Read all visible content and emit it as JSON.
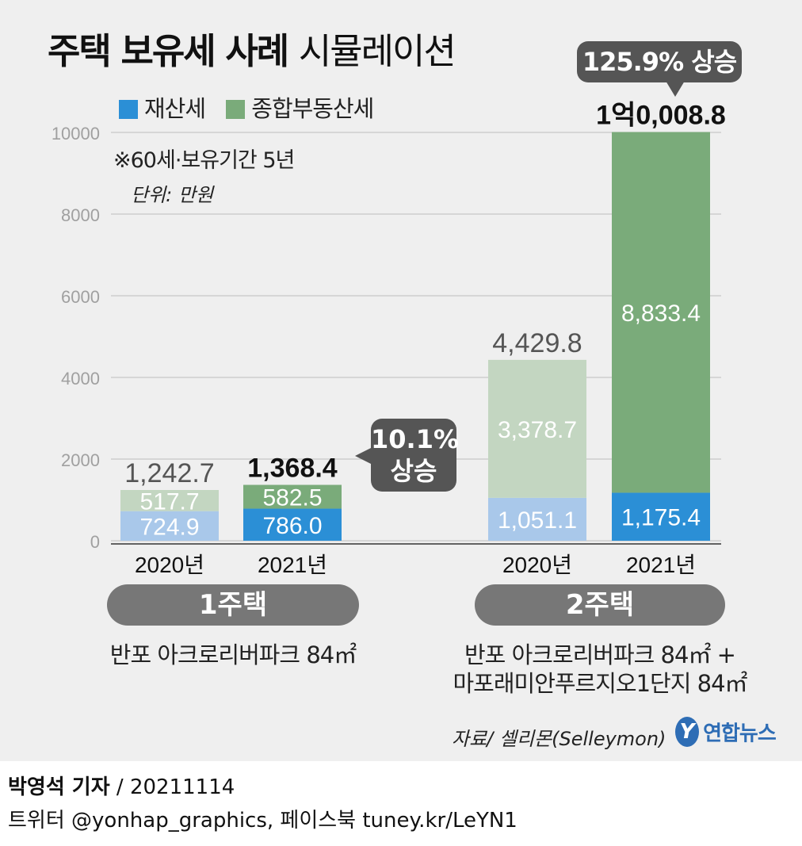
{
  "title": {
    "main": "주택 보유세 사례",
    "sub": "시뮬레이션"
  },
  "legend": [
    {
      "label": "재산세",
      "color": "#2b8fd6"
    },
    {
      "label": "종합부동산세",
      "color": "#7aab7a"
    }
  ],
  "notes": {
    "condition": "※60세·보유기간 5년",
    "unit": "단위: 만원"
  },
  "chart_data": {
    "type": "bar",
    "stacked": true,
    "ylim": [
      0,
      10000
    ],
    "yticks": [
      "0",
      "2000",
      "4000",
      "6000",
      "8000",
      "10000"
    ],
    "categories": [
      "2020년",
      "2021년",
      "2020년",
      "2021년"
    ],
    "groups": [
      "1주택",
      "2주택"
    ],
    "series": [
      {
        "name": "재산세",
        "values": [
          724.9,
          786.0,
          1051.1,
          1175.4
        ],
        "labels": [
          "724.9",
          "786.0",
          "1,051.1",
          "1,175.4"
        ]
      },
      {
        "name": "종합부동산세",
        "values": [
          517.7,
          582.5,
          3378.7,
          8833.4
        ],
        "labels": [
          "517.7",
          "582.5",
          "3,378.7",
          "8,833.4"
        ]
      }
    ],
    "totals": [
      "1,242.7",
      "1,368.4",
      "4,429.8",
      "1억0,008.8"
    ],
    "colors": {
      "base_light": "#a9c8ea",
      "base_dark": "#2b8fd6",
      "top_light": "#c3d6c1",
      "top_dark": "#7aab7a",
      "total_light": "#555555",
      "total_dark": "#111111"
    }
  },
  "callouts": {
    "one_house": "10.1% 상승",
    "two_house": "125.9% 상승"
  },
  "groups": {
    "one_house": {
      "name": "1주택",
      "desc": "반포 아크로리버파크 84㎡"
    },
    "two_house": {
      "name": "2주택",
      "desc_line1": "반포 아크로리버파크 84㎡ +",
      "desc_line2": "마포래미안푸르지오1단지 84㎡"
    }
  },
  "source": "자료/ 셀리몬(Selleymon)",
  "logo": {
    "mark": "Y",
    "text": "연합뉴스"
  },
  "footer": {
    "reporter": "박영석 기자",
    "date": "/  20211114",
    "social": "트위터 @yonhap_graphics, 페이스북 tuney.kr/LeYN1"
  }
}
